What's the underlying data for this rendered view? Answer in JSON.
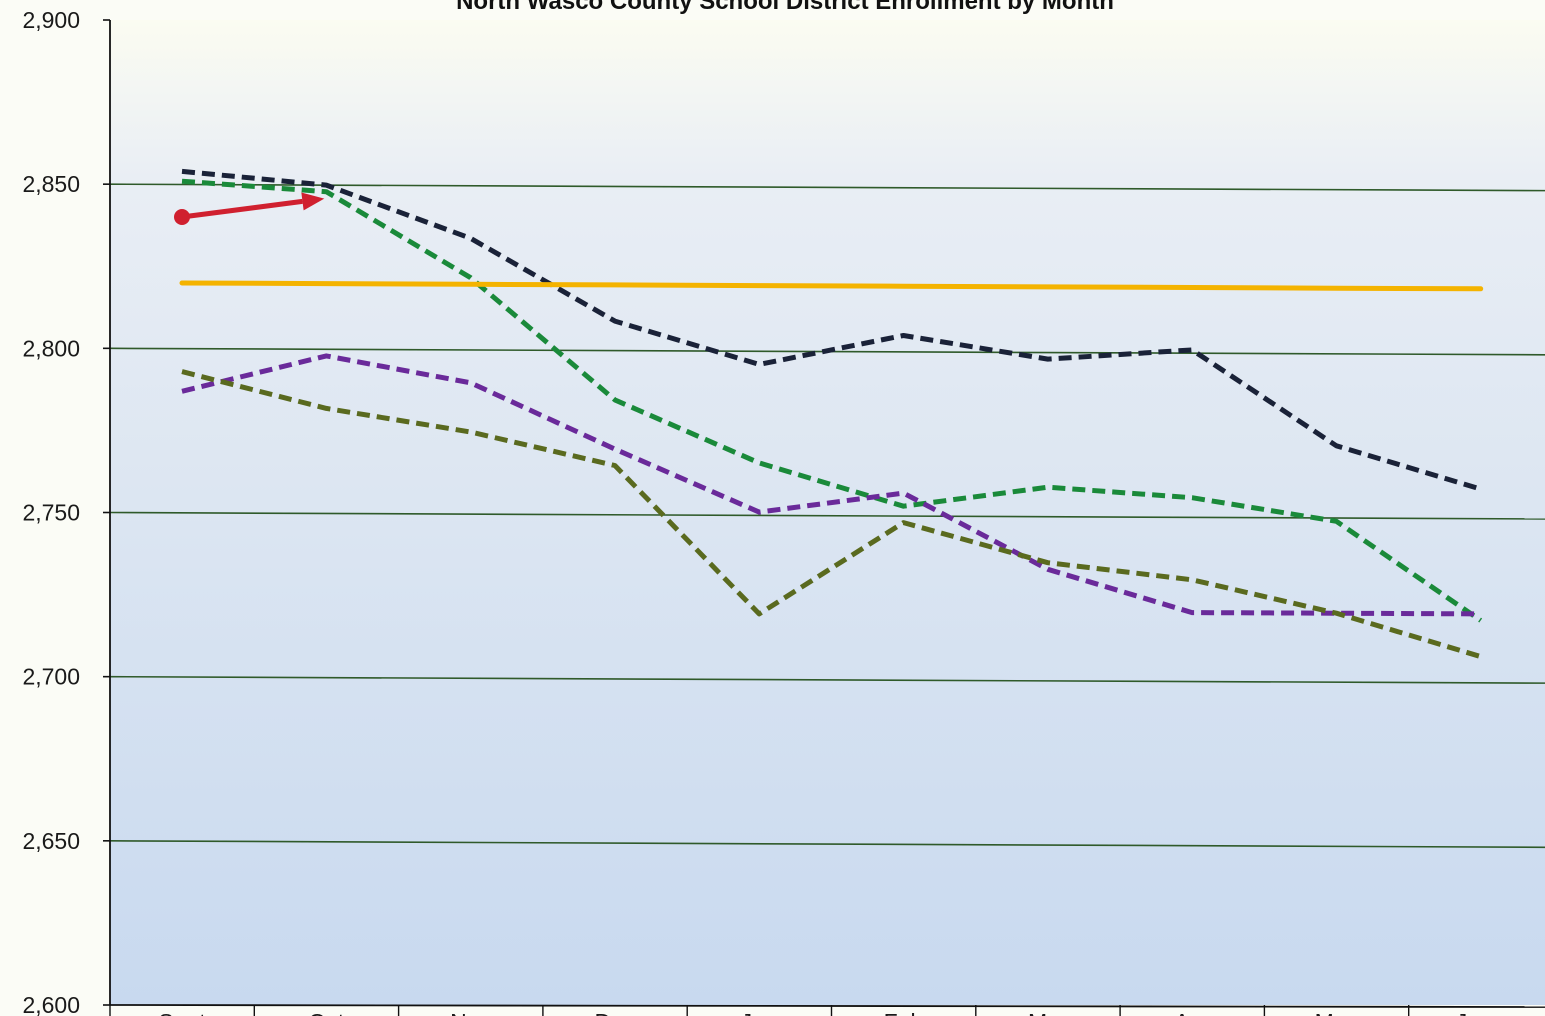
{
  "chart_data": {
    "type": "line",
    "title": "North Wasco County School District Enrollment by Month",
    "xlabel": "",
    "ylabel": "",
    "ylim": [
      2600,
      2900
    ],
    "yticks": [
      2600,
      2650,
      2700,
      2750,
      2800,
      2850,
      2900
    ],
    "ytick_labels": [
      "2,600",
      "2,650",
      "2,700",
      "2,750",
      "2,800",
      "2,850",
      "2,900"
    ],
    "categories": [
      "Sept",
      "Oct",
      "Nov",
      "Dec",
      "Jan",
      "Feb",
      "Mar",
      "Apr",
      "May",
      "June"
    ],
    "grid": true,
    "legend": "none visible",
    "colors": {
      "background_top": "#fbfcf2",
      "background_bottom": "#c8d9ef",
      "gridline": "#2f5a2a",
      "axis": "#111111"
    },
    "series": [
      {
        "color": "#1a2238",
        "style": "dashed",
        "values": [
          2854,
          2850,
          2834,
          2809,
          2796,
          2805,
          2798,
          2801,
          2772,
          2759
        ]
      },
      {
        "color": "#1a8a3a",
        "style": "dashed",
        "values": [
          2851,
          2848,
          2822,
          2785,
          2766,
          2753,
          2759,
          2756,
          2749,
          2719
        ]
      },
      {
        "color": "#6a2a9a",
        "style": "dashed",
        "values": [
          2787,
          2798,
          2790,
          2770,
          2751,
          2757,
          2734,
          2721,
          2721,
          2721
        ]
      },
      {
        "color": "#5a6a1f",
        "style": "dashed",
        "values": [
          2793,
          2782,
          2775,
          2765,
          2720,
          2748,
          2736,
          2731,
          2721,
          2708
        ]
      },
      {
        "color": "#f4b300",
        "style": "solid",
        "values": [
          2820,
          2820,
          2820,
          2820,
          2820,
          2820,
          2820,
          2820,
          2820,
          2820
        ]
      }
    ],
    "annotations": [
      {
        "type": "arrow",
        "color": "#d0202f",
        "from": {
          "category": "Sept",
          "value": 2840
        },
        "to": {
          "category": "Oct",
          "value": 2845
        }
      }
    ]
  }
}
